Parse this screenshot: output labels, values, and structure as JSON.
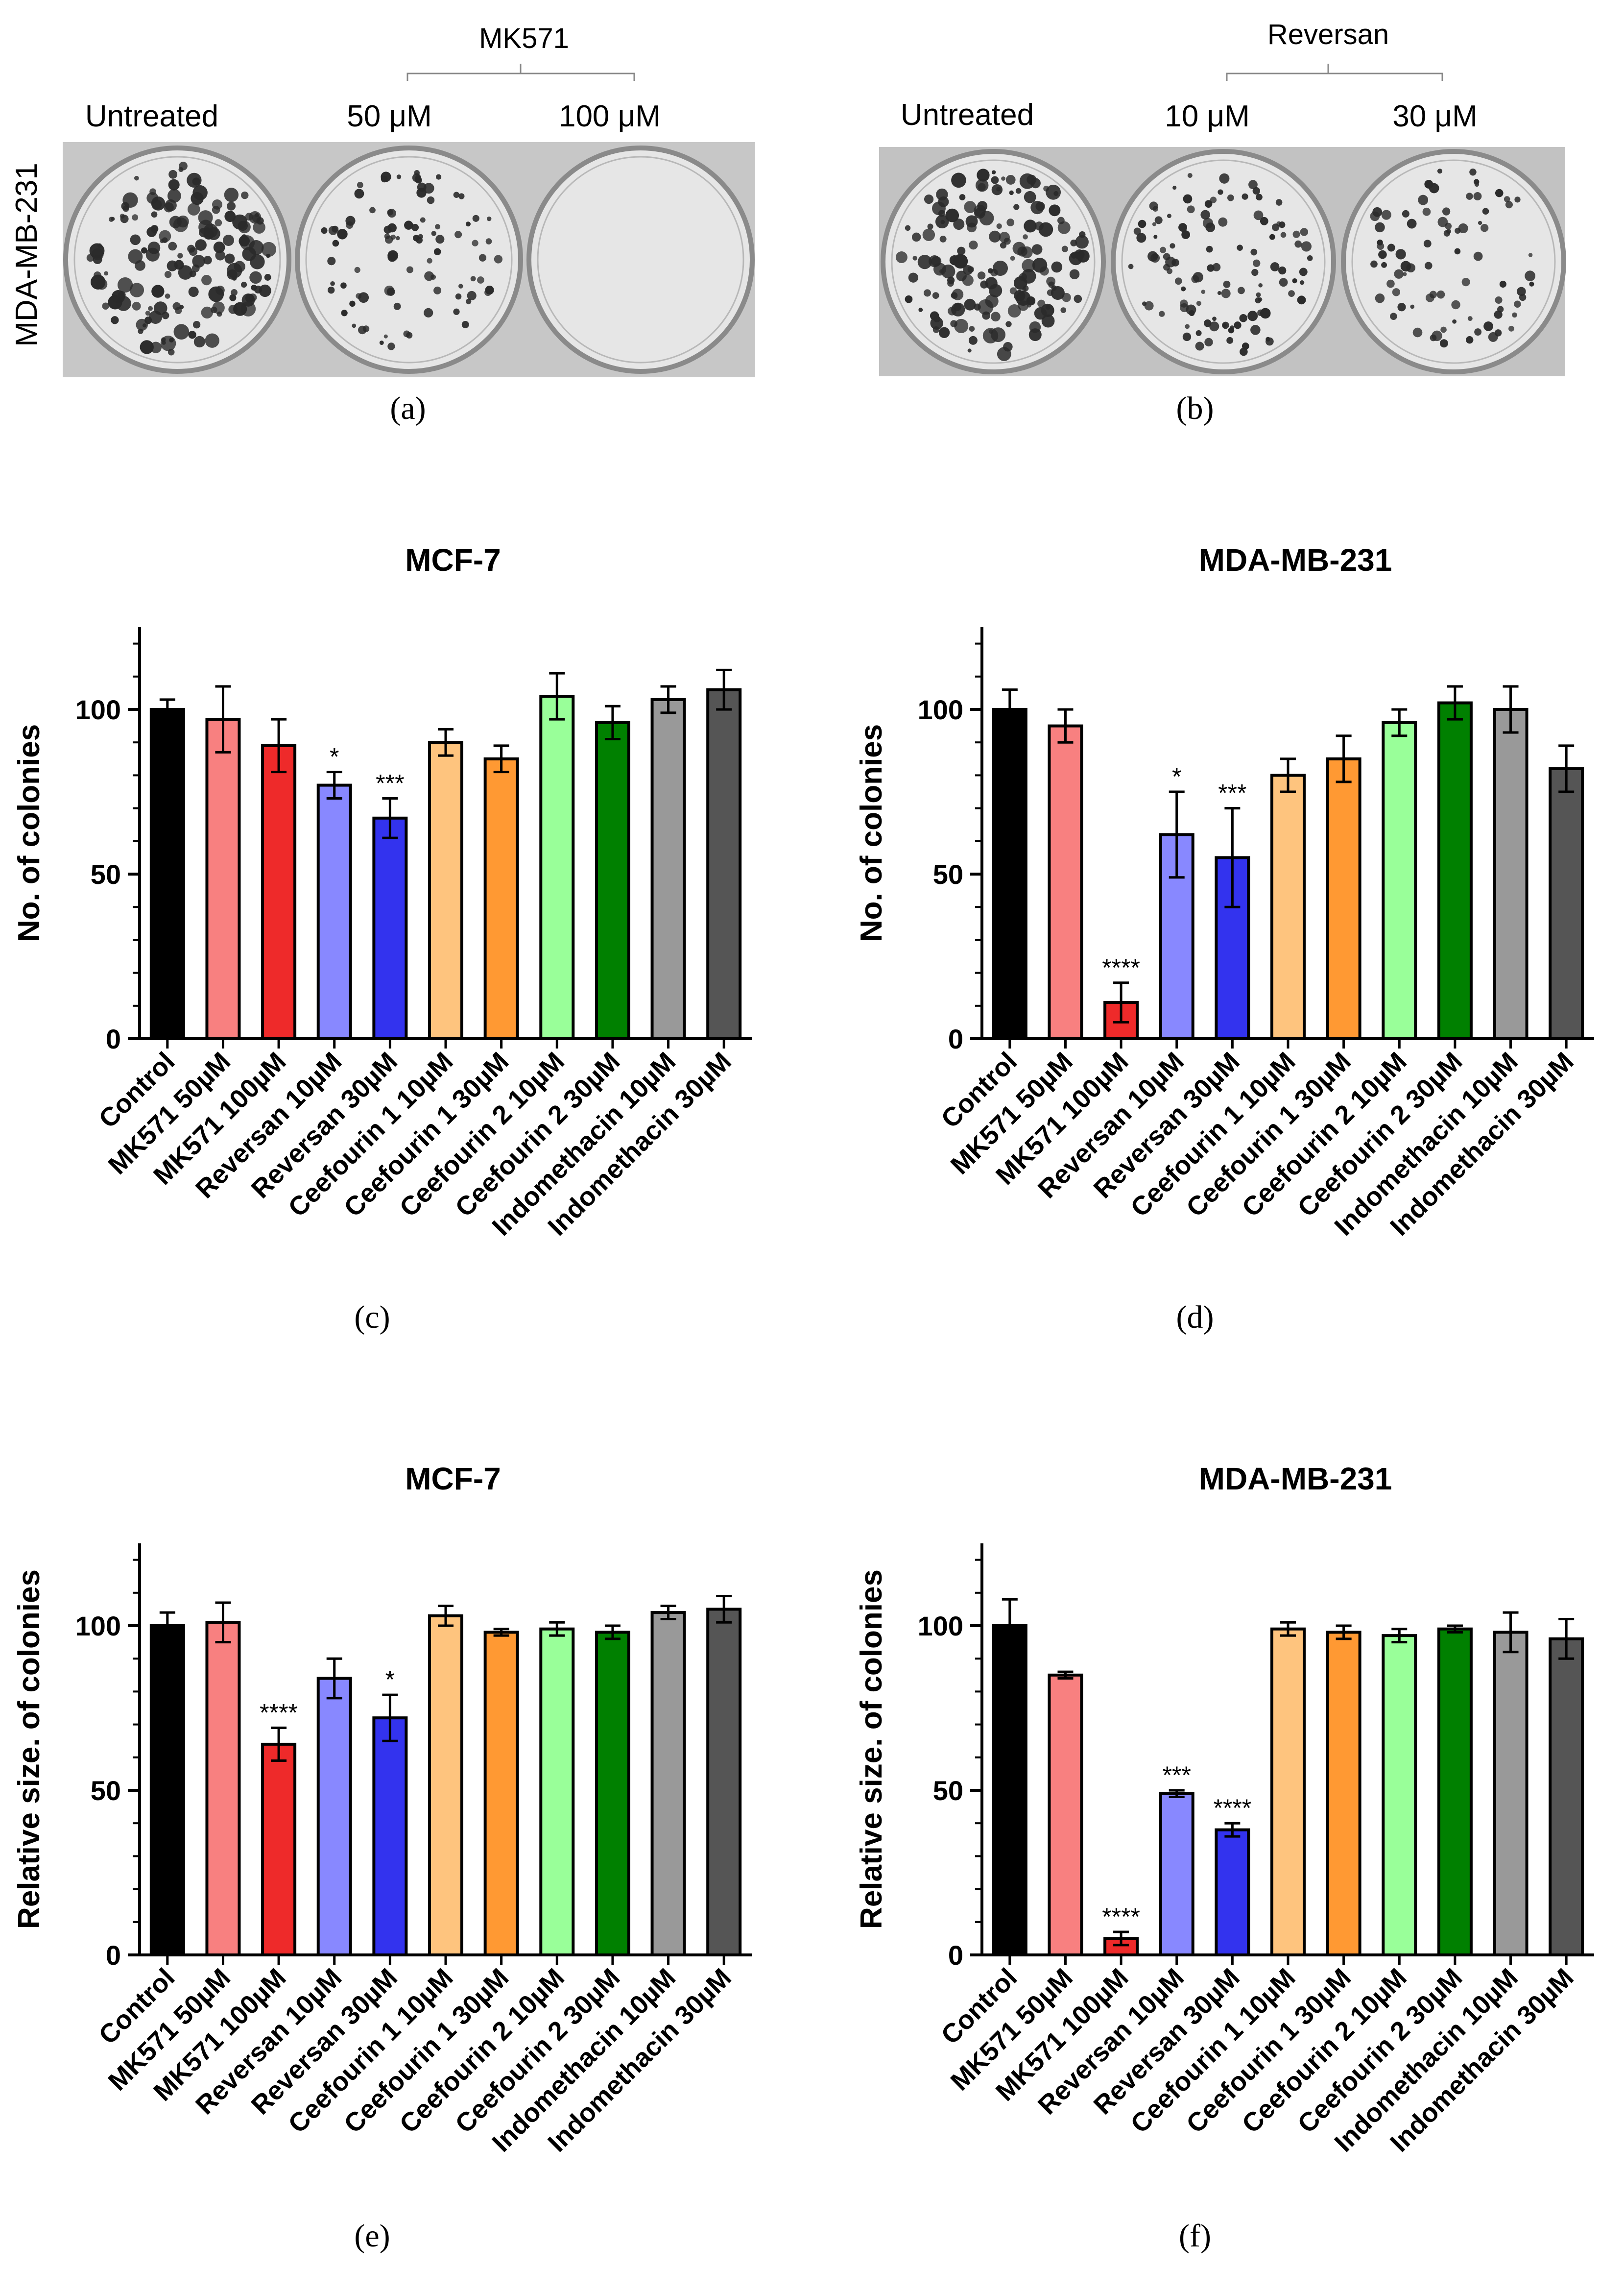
{
  "figure": {
    "panel_a": {
      "caption": "(a)",
      "cell_line": "MDA-MB-231",
      "drug": "MK571",
      "labels": [
        "Untreated",
        "50 μM",
        "100 μM"
      ],
      "colony_density": [
        1.0,
        0.55,
        0.0
      ]
    },
    "panel_b": {
      "caption": "(b)",
      "drug": "Reversan",
      "labels": [
        "Untreated",
        "10 μM",
        "30 μM"
      ],
      "colony_density": [
        1.0,
        0.7,
        0.5
      ]
    }
  },
  "chart_data": [
    {
      "id": "c",
      "caption": "(c)",
      "type": "bar",
      "title": "MCF-7",
      "ylabel": "No. of colonies",
      "ylim": [
        0,
        125
      ],
      "yticks": [
        0,
        50,
        100
      ],
      "categories": [
        "Control",
        "MK571 50µM",
        "MK571 100µM",
        "Reversan 10µM",
        "Reversan 30µM",
        "Ceefourin 1 10µM",
        "Ceefourin 1 30µM",
        "Ceefourin 2 10µM",
        "Ceefourin 2 30µM",
        "Indomethacin 10µM",
        "Indomethacin 30µM"
      ],
      "values": [
        100,
        97,
        89,
        77,
        67,
        90,
        85,
        104,
        96,
        103,
        106
      ],
      "errors": [
        3,
        10,
        8,
        4,
        6,
        4,
        4,
        7,
        5,
        4,
        6
      ],
      "significance": [
        "",
        "",
        "",
        "*",
        "***",
        "",
        "",
        "",
        "",
        "",
        ""
      ]
    },
    {
      "id": "d",
      "caption": "(d)",
      "type": "bar",
      "title": "MDA-MB-231",
      "ylabel": "No. of colonies",
      "ylim": [
        0,
        125
      ],
      "yticks": [
        0,
        50,
        100
      ],
      "categories": [
        "Control",
        "MK571 50µM",
        "MK571 100µM",
        "Reversan 10µM",
        "Reversan 30µM",
        "Ceefourin 1 10µM",
        "Ceefourin 1 30µM",
        "Ceefourin 2 10µM",
        "Ceefourin 2 30µM",
        "Indomethacin 10µM",
        "Indomethacin 30µM"
      ],
      "values": [
        100,
        95,
        11,
        62,
        55,
        80,
        85,
        96,
        102,
        100,
        82
      ],
      "errors": [
        6,
        5,
        6,
        13,
        15,
        5,
        7,
        4,
        5,
        7,
        7
      ],
      "significance": [
        "",
        "",
        "****",
        "*",
        "***",
        "",
        "",
        "",
        "",
        "",
        ""
      ]
    },
    {
      "id": "e",
      "caption": "(e)",
      "type": "bar",
      "title": "MCF-7",
      "ylabel": "Relative size. of colonies",
      "ylim": [
        0,
        125
      ],
      "yticks": [
        0,
        50,
        100
      ],
      "categories": [
        "Control",
        "MK571 50µM",
        "MK571 100µM",
        "Reversan 10µM",
        "Reversan 30µM",
        "Ceefourin 1 10µM",
        "Ceefourin 1 30µM",
        "Ceefourin 2 10µM",
        "Ceefourin 2 30µM",
        "Indomethacin 10µM",
        "Indomethacin 30µM"
      ],
      "values": [
        100,
        101,
        64,
        84,
        72,
        103,
        98,
        99,
        98,
        104,
        105
      ],
      "errors": [
        4,
        6,
        5,
        6,
        7,
        3,
        1,
        2,
        2,
        2,
        4
      ],
      "significance": [
        "",
        "",
        "****",
        "",
        "*",
        "",
        "",
        "",
        "",
        "",
        ""
      ]
    },
    {
      "id": "f",
      "caption": "(f)",
      "type": "bar",
      "title": "MDA-MB-231",
      "ylabel": "Relative size. of colonies",
      "ylim": [
        0,
        125
      ],
      "yticks": [
        0,
        50,
        100
      ],
      "categories": [
        "Control",
        "MK571 50µM",
        "MK571 100µM",
        "Reversan 10µM",
        "Reversan 30µM",
        "Ceefourin 1 10µM",
        "Ceefourin 1 30µM",
        "Ceefourin 2 10µM",
        "Ceefourin 2 30µM",
        "Indomethacin 10µM",
        "Indomethacin 30µM"
      ],
      "values": [
        100,
        85,
        5,
        49,
        38,
        99,
        98,
        97,
        99,
        98,
        96
      ],
      "errors": [
        8,
        1,
        2,
        1,
        2,
        2,
        2,
        2,
        1,
        6,
        6
      ],
      "significance": [
        "",
        "",
        "****",
        "***",
        "****",
        "",
        "",
        "",
        "",
        "",
        ""
      ]
    }
  ],
  "bar_colors": [
    "#000000",
    "#f88080",
    "#ee2a2a",
    "#8888ff",
    "#3333ee",
    "#fec47e",
    "#ff9933",
    "#99ff99",
    "#008000",
    "#999999",
    "#555555"
  ]
}
